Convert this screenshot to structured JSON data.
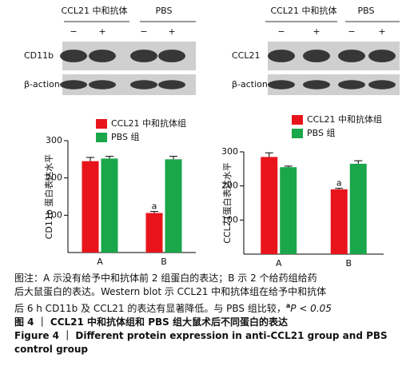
{
  "blots": [
    {
      "header": [
        "CCL21 中和抗体",
        "PBS"
      ],
      "signs": [
        "−",
        "+",
        "−",
        "+"
      ],
      "rows": [
        "CD11b",
        "β-action"
      ]
    },
    {
      "header": [
        "CCL21 中和抗体",
        "PBS"
      ],
      "signs": [
        "−",
        "+",
        "−",
        "+"
      ],
      "rows": [
        "CCL21",
        "β-action"
      ]
    }
  ],
  "chart_data": [
    {
      "type": "bar",
      "ylabel": "CD11b 蛋白表达水平",
      "categories": [
        "A",
        "B"
      ],
      "series": [
        {
          "name": "CCL21 中和抗体组",
          "color": "#e8141b",
          "values": [
            245,
            106
          ],
          "errors": [
            10,
            4
          ],
          "annotations": [
            null,
            "a"
          ]
        },
        {
          "name": "PBS 组",
          "color": "#1aa64a",
          "values": [
            252,
            250
          ],
          "errors": [
            6,
            8
          ],
          "annotations": [
            null,
            null
          ]
        }
      ],
      "ylim": [
        0,
        300
      ],
      "yticks": [
        100,
        200,
        300
      ]
    },
    {
      "type": "bar",
      "ylabel": "CCL21蛋白表达水平",
      "categories": [
        "A",
        "B"
      ],
      "series": [
        {
          "name": "CCL21 中和抗体组",
          "color": "#e8141b",
          "values": [
            285,
            190
          ],
          "errors": [
            12,
            3
          ],
          "annotations": [
            null,
            "a"
          ]
        },
        {
          "name": "PBS 组",
          "color": "#1aa64a",
          "values": [
            255,
            265
          ],
          "errors": [
            3,
            9
          ],
          "annotations": [
            null,
            null
          ]
        }
      ],
      "ylim": [
        0,
        300
      ],
      "yticks": [
        100,
        200,
        300
      ]
    }
  ],
  "caption": {
    "note": [
      "图注：A 示没有给予中和抗体前 2 组蛋白的表达；B 示 2 个给药组给药",
      "后大鼠蛋白的表达。Western blot 示 CCL21 中和抗体组在给予中和抗体",
      "后 6 h CD11b 及 CCL21 的表达有显著降低。与 PBS 组比较，"
    ],
    "sig_mark": "a",
    "sig_text": "P < 0.05",
    "title_cn": "图 4 ｜ CCL21 中和抗体组和 PBS 组大鼠术后不同蛋白的表达",
    "title_en": [
      "Figure 4 ｜ Different protein expression in anti-CCL21 group and PBS",
      "control group"
    ]
  }
}
